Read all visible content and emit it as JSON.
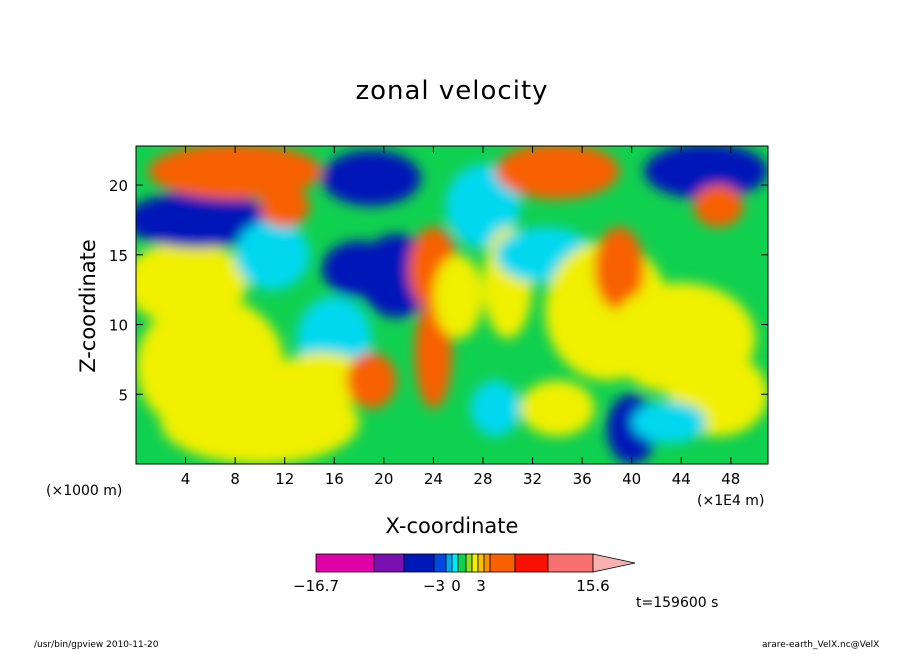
{
  "chart_data": {
    "type": "heatmap",
    "title": "zonal velocity",
    "xlabel": "X-coordinate",
    "ylabel": "Z-coordinate",
    "x_unit_left": "(×1000 m)",
    "x_unit_right": "(×1E4 m)",
    "xlim": [
      0,
      51
    ],
    "ylim": [
      0,
      22.8
    ],
    "x_ticks": [
      4,
      8,
      12,
      16,
      20,
      24,
      28,
      32,
      36,
      40,
      44,
      48
    ],
    "y_ticks": [
      5,
      10,
      15,
      20
    ],
    "x_tick_labels": [
      "4",
      "8",
      "12",
      "16",
      "20",
      "24",
      "28",
      "32",
      "36",
      "40",
      "44",
      "48"
    ],
    "y_tick_labels": [
      "5",
      "10",
      "15",
      "20"
    ],
    "colorbar": {
      "labels": [
        {
          "text": "−16.7",
          "value": -16.7
        },
        {
          "text": "−3",
          "value": -3
        },
        {
          "text": "0",
          "value": 0
        },
        {
          "text": "3",
          "value": 3
        },
        {
          "text": "15.6",
          "value": 15.6
        }
      ],
      "colors": [
        "#e000a8",
        "#7a10b0",
        "#0018b8",
        "#0048e0",
        "#00a8f0",
        "#00e8f8",
        "#10d050",
        "#90e020",
        "#f0f000",
        "#f8c000",
        "#f89000",
        "#f86000",
        "#f81000",
        "#f87070",
        "#f8b0b0"
      ],
      "extend": "max"
    },
    "annotation": "t=159600 s",
    "field_description_colors": {
      "negative_strong": "#0018b8",
      "negative": "#00d8f0",
      "neutral": "#10d050",
      "positive": "#f0f000",
      "positive_strong": "#f86000"
    }
  },
  "footer": {
    "left": "/usr/bin/gpview   2010-11-20",
    "right": "arare-earth_VelX.nc@VelX"
  }
}
